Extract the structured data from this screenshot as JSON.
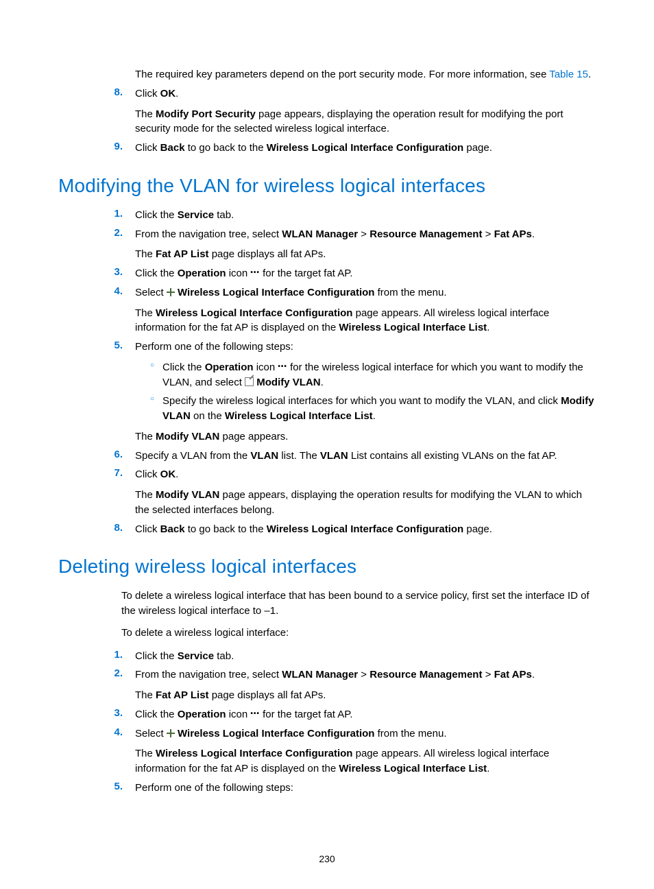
{
  "colors": {
    "accent": "#0073cf",
    "text": "#000000",
    "background": "#ffffff"
  },
  "typography": {
    "heading_fontsize": 28,
    "body_fontsize": 15
  },
  "page_number": "230",
  "top_steps": [
    {
      "num": "",
      "paras": [
        {
          "html": "The required key parameters depend on the port security mode. For more information, see <span class='link'>Table 15</span>."
        }
      ]
    },
    {
      "num": "8.",
      "paras": [
        {
          "html": "Click <span class='bold'>OK</span>."
        },
        {
          "html": "The <span class='bold'>Modify Port Security</span> page appears, displaying the operation result for modifying the port security mode for the selected wireless logical interface."
        }
      ]
    },
    {
      "num": "9.",
      "paras": [
        {
          "html": "Click <span class='bold'>Back</span> to go back to the <span class='bold'>Wireless Logical Interface Configuration</span> page."
        }
      ]
    }
  ],
  "section1": {
    "title": "Modifying the VLAN for wireless logical interfaces",
    "steps": [
      {
        "num": "1.",
        "paras": [
          {
            "html": "Click the <span class='bold'>Service</span> tab."
          }
        ]
      },
      {
        "num": "2.",
        "paras": [
          {
            "html": "From the navigation tree, select <span class='bold'>WLAN Manager</span> &gt; <span class='bold'>Resource Management</span> &gt; <span class='bold'>Fat APs</span>."
          },
          {
            "html": "The <span class='bold'>Fat AP List</span> page displays all fat APs."
          }
        ]
      },
      {
        "num": "3.",
        "paras": [
          {
            "html": "Click the <span class='bold'>Operation</span> icon <span class='dots-icon' data-name='more-dots-icon' data-interactable='false'>•••</span> for the target fat AP."
          }
        ]
      },
      {
        "num": "4.",
        "paras": [
          {
            "html": "Select <span class='plus-icon' data-name='plus-icon' data-interactable='false'></span> <span class='bold'>Wireless Logical Interface Configuration</span> from the menu."
          },
          {
            "html": "The <span class='bold'>Wireless Logical Interface Configuration</span> page appears. All wireless logical interface information for the fat AP is displayed on the <span class='bold'>Wireless Logical Interface List</span>."
          }
        ]
      },
      {
        "num": "5.",
        "paras": [
          {
            "html": "Perform one of the following steps:"
          }
        ],
        "subs": [
          {
            "html": "Click the <span class='bold'>Operation</span> icon <span class='dots-icon' data-name='more-dots-icon' data-interactable='false'>•••</span> for the wireless logical interface for which you want to modify the VLAN, and select <span class='edit-icon' data-name='edit-icon' data-interactable='false'></span> <span class='bold'>Modify VLAN</span>."
          },
          {
            "html": "Specify the wireless logical interfaces for which you want to modify the VLAN, and click <span class='bold'>Modify VLAN</span> on the <span class='bold'>Wireless Logical Interface List</span>."
          }
        ],
        "after": [
          {
            "html": "The <span class='bold'>Modify VLAN</span> page appears."
          }
        ]
      },
      {
        "num": "6.",
        "paras": [
          {
            "html": "Specify a VLAN from the <span class='bold'>VLAN</span> list. The <span class='bold'>VLAN</span> List contains all existing VLANs on the fat AP."
          }
        ]
      },
      {
        "num": "7.",
        "paras": [
          {
            "html": "Click <span class='bold'>OK</span>."
          },
          {
            "html": "The <span class='bold'>Modify VLAN</span> page appears, displaying the operation results for modifying the VLAN to which the selected interfaces belong."
          }
        ]
      },
      {
        "num": "8.",
        "paras": [
          {
            "html": "Click <span class='bold'>Back</span> to go back to the <span class='bold'>Wireless Logical Interface Configuration</span> page."
          }
        ]
      }
    ]
  },
  "section2": {
    "title": "Deleting wireless logical interfaces",
    "intro": [
      {
        "html": "To delete a wireless logical interface that has been bound to a service policy, first set the interface ID of the wireless logical interface to –1."
      },
      {
        "html": "To delete a wireless logical interface:"
      }
    ],
    "steps": [
      {
        "num": "1.",
        "paras": [
          {
            "html": "Click the <span class='bold'>Service</span> tab."
          }
        ]
      },
      {
        "num": "2.",
        "paras": [
          {
            "html": "From the navigation tree, select <span class='bold'>WLAN Manager</span> &gt; <span class='bold'>Resource Management</span> &gt; <span class='bold'>Fat APs</span>."
          },
          {
            "html": "The <span class='bold'>Fat AP List</span> page displays all fat APs."
          }
        ]
      },
      {
        "num": "3.",
        "paras": [
          {
            "html": "Click the <span class='bold'>Operation</span> icon <span class='dots-icon' data-name='more-dots-icon' data-interactable='false'>•••</span> for the target fat AP."
          }
        ]
      },
      {
        "num": "4.",
        "paras": [
          {
            "html": "Select <span class='plus-icon' data-name='plus-icon' data-interactable='false'></span> <span class='bold'>Wireless Logical Interface Configuration</span> from the menu."
          },
          {
            "html": "The <span class='bold'>Wireless Logical Interface Configuration</span> page appears. All wireless logical interface information for the fat AP is displayed on the <span class='bold'>Wireless Logical Interface List</span>."
          }
        ]
      },
      {
        "num": "5.",
        "paras": [
          {
            "html": "Perform one of the following steps:"
          }
        ]
      }
    ]
  }
}
